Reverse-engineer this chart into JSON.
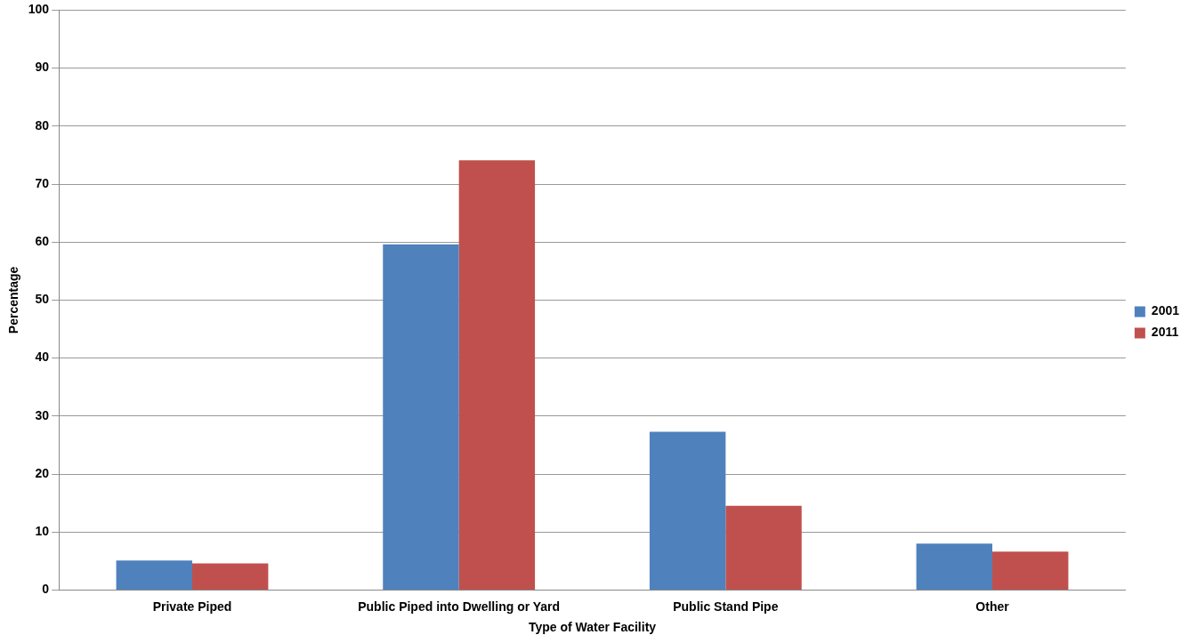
{
  "chart_data": {
    "type": "bar",
    "xlabel": "Type of Water Facility",
    "ylabel": "Percentage",
    "categories": [
      "Private Piped",
      "Public Piped into Dwelling or Yard",
      "Public Stand Pipe",
      "Other"
    ],
    "series": [
      {
        "name": "2001",
        "color": "#4f81bd",
        "values": [
          5.1,
          59.6,
          27.3,
          8.0
        ]
      },
      {
        "name": "2011",
        "color": "#c0504d",
        "values": [
          4.6,
          74.1,
          14.5,
          6.6
        ]
      }
    ],
    "ylim": [
      0,
      100
    ],
    "yticks": [
      0,
      10,
      20,
      30,
      40,
      50,
      60,
      70,
      80,
      90,
      100
    ],
    "grid": "y",
    "legend": "right"
  }
}
